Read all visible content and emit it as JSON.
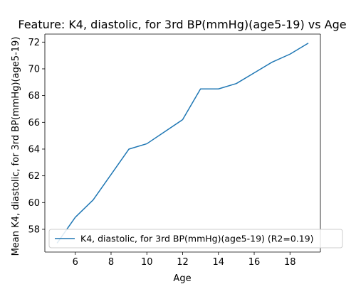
{
  "chart_data": {
    "type": "line",
    "title": "Feature: K4, diastolic, for 3rd BP(mmHg)(age5-19) vs Age",
    "xlabel": "Age",
    "ylabel": "Mean K4, diastolic, for 3rd BP(mmHg)(age5-19)",
    "xlim": [
      4.3,
      19.7
    ],
    "ylim": [
      56.3,
      72.6
    ],
    "xticks": [
      6,
      8,
      10,
      12,
      14,
      16,
      18
    ],
    "yticks": [
      58,
      60,
      62,
      64,
      66,
      68,
      70,
      72
    ],
    "grid": false,
    "legend_position": "lower-left",
    "series": [
      {
        "name": "K4, diastolic, for 3rd BP(mmHg)(age5-19) (R2=0.19)",
        "color": "#1f77b4",
        "x": [
          5,
          6,
          7,
          8,
          9,
          10,
          11,
          12,
          13,
          14,
          15,
          16,
          17,
          18,
          19
        ],
        "y": [
          57.0,
          58.9,
          60.2,
          62.1,
          64.0,
          64.4,
          65.3,
          66.2,
          68.5,
          68.5,
          68.9,
          69.7,
          70.5,
          71.1,
          71.9
        ]
      }
    ]
  }
}
